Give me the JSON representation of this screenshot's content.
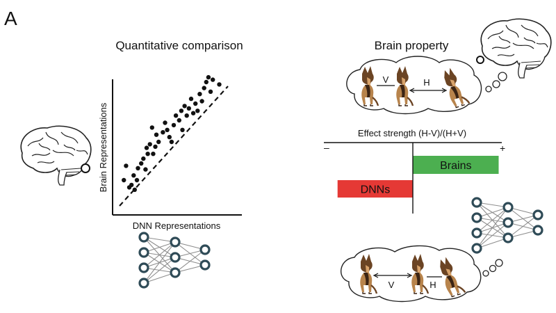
{
  "panel_label": "A",
  "left": {
    "title": "Quantitative comparison",
    "scatter": {
      "xlabel": "DNN Representations",
      "ylabel": "Brain Representations"
    }
  },
  "right": {
    "title": "Brain property",
    "top_bubble": {
      "v_label": "V",
      "h_label": "H"
    },
    "effect": {
      "title": "Effect strength (H-V)/(H+V)",
      "minus": "–",
      "plus": "+",
      "bars": [
        {
          "name": "Brains",
          "value": 0.65,
          "color": "#4caf50"
        },
        {
          "name": "DNNs",
          "value": -0.57,
          "color": "#e53935"
        }
      ],
      "xlim": [
        -0.65,
        0.72
      ]
    },
    "bottom_bubble": {
      "v_label": "V",
      "h_label": "H"
    }
  },
  "chart_data": {
    "type": "scatter",
    "xlabel": "DNN Representations",
    "ylabel": "Brain Representations",
    "xlim": [
      0,
      1
    ],
    "ylim": [
      0,
      1
    ],
    "trend": "dashed diagonal fit line",
    "points": [
      [
        0.04,
        0.18
      ],
      [
        0.06,
        0.3
      ],
      [
        0.09,
        0.12
      ],
      [
        0.11,
        0.14
      ],
      [
        0.14,
        0.1
      ],
      [
        0.13,
        0.22
      ],
      [
        0.16,
        0.18
      ],
      [
        0.17,
        0.28
      ],
      [
        0.2,
        0.32
      ],
      [
        0.22,
        0.36
      ],
      [
        0.24,
        0.27
      ],
      [
        0.26,
        0.4
      ],
      [
        0.28,
        0.48
      ],
      [
        0.31,
        0.4
      ],
      [
        0.33,
        0.46
      ],
      [
        0.34,
        0.56
      ],
      [
        0.3,
        0.62
      ],
      [
        0.36,
        0.5
      ],
      [
        0.4,
        0.58
      ],
      [
        0.42,
        0.66
      ],
      [
        0.44,
        0.6
      ],
      [
        0.46,
        0.54
      ],
      [
        0.5,
        0.64
      ],
      [
        0.52,
        0.72
      ],
      [
        0.55,
        0.68
      ],
      [
        0.57,
        0.76
      ],
      [
        0.58,
        0.6
      ],
      [
        0.6,
        0.8
      ],
      [
        0.62,
        0.72
      ],
      [
        0.64,
        0.78
      ],
      [
        0.66,
        0.86
      ],
      [
        0.68,
        0.74
      ],
      [
        0.7,
        0.82
      ],
      [
        0.72,
        0.76
      ],
      [
        0.74,
        0.9
      ],
      [
        0.76,
        0.84
      ],
      [
        0.78,
        0.95
      ],
      [
        0.8,
        1.0
      ],
      [
        0.82,
        1.04
      ],
      [
        0.84,
        0.92
      ],
      [
        0.86,
        1.02
      ],
      [
        0.92,
        0.98
      ],
      [
        0.48,
        0.5
      ],
      [
        0.25,
        0.45
      ]
    ]
  }
}
